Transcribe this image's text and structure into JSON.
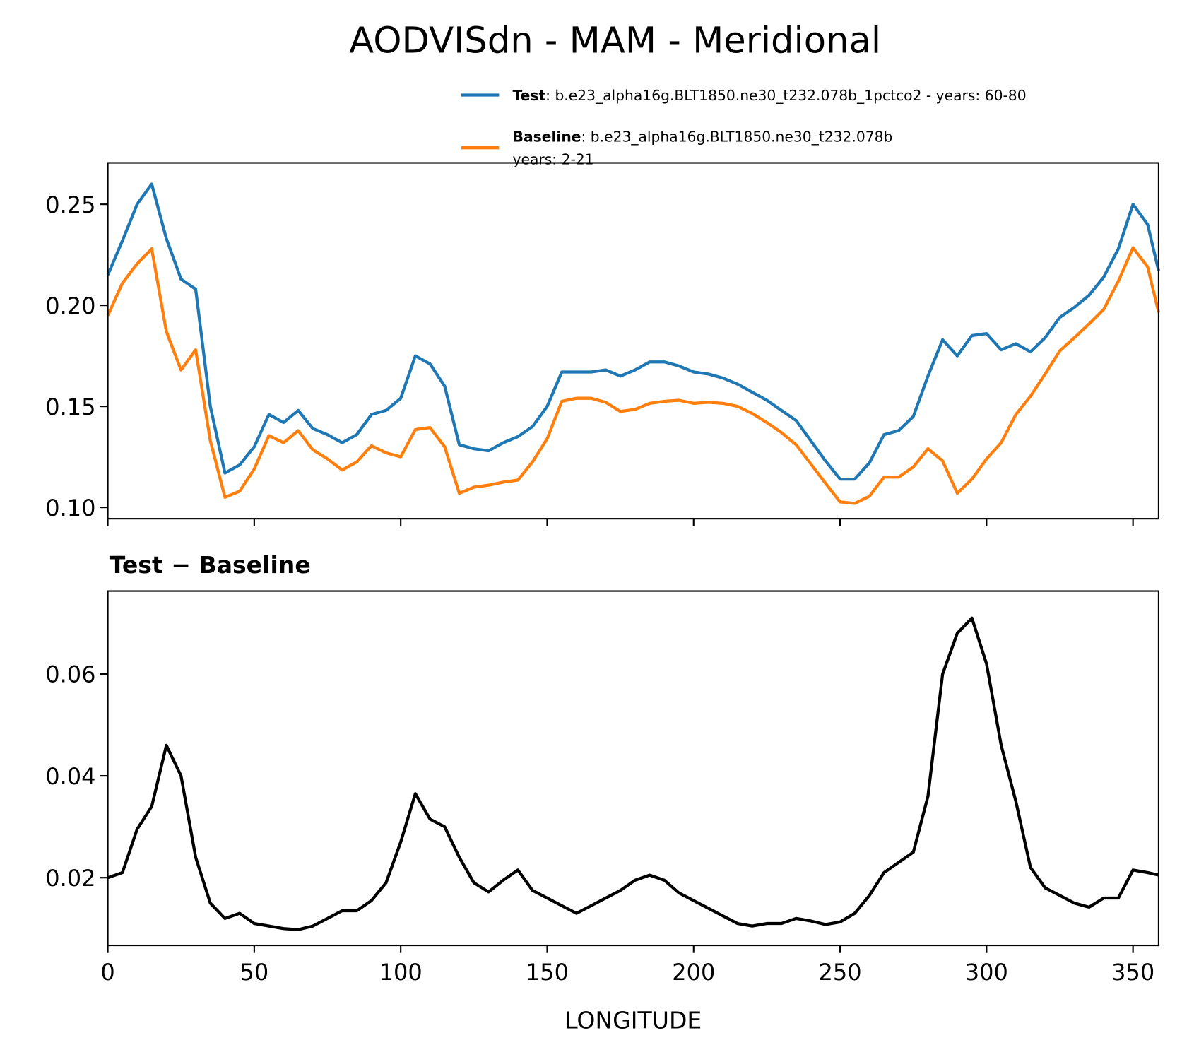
{
  "chart_data": [
    {
      "type": "line",
      "suptitle": "AODVISdn - MAM - Meridional",
      "x": [
        0,
        5,
        10,
        15,
        20,
        25,
        30,
        35,
        40,
        45,
        50,
        55,
        60,
        65,
        70,
        75,
        80,
        85,
        90,
        95,
        100,
        105,
        110,
        115,
        120,
        125,
        130,
        135,
        140,
        145,
        150,
        155,
        160,
        165,
        170,
        175,
        180,
        185,
        190,
        195,
        200,
        205,
        210,
        215,
        220,
        225,
        230,
        235,
        240,
        245,
        250,
        255,
        260,
        265,
        270,
        275,
        280,
        285,
        290,
        295,
        300,
        305,
        310,
        315,
        320,
        325,
        330,
        335,
        340,
        345,
        350,
        355,
        358.75
      ],
      "series": [
        {
          "name": "Test",
          "description_lines": [
            ": b.e23_alpha16g.BLT1850.ne30_t232.078b_1pctco2 - years: 60-80"
          ],
          "color": "#1f77b4",
          "values": [
            0.215,
            0.232,
            0.25,
            0.26,
            0.233,
            0.213,
            0.208,
            0.15,
            0.117,
            0.121,
            0.13,
            0.146,
            0.142,
            0.148,
            0.139,
            0.136,
            0.132,
            0.136,
            0.146,
            0.148,
            0.154,
            0.175,
            0.171,
            0.16,
            0.131,
            0.129,
            0.128,
            0.132,
            0.135,
            0.14,
            0.15,
            0.167,
            0.167,
            0.167,
            0.168,
            0.165,
            0.168,
            0.172,
            0.172,
            0.17,
            0.167,
            0.166,
            0.164,
            0.161,
            0.157,
            0.153,
            0.148,
            0.143,
            0.133,
            0.123,
            0.114,
            0.114,
            0.122,
            0.136,
            0.138,
            0.145,
            0.165,
            0.183,
            0.175,
            0.185,
            0.186,
            0.178,
            0.181,
            0.177,
            0.184,
            0.194,
            0.199,
            0.205,
            0.214,
            0.228,
            0.25,
            0.24,
            0.217
          ]
        },
        {
          "name": "Baseline",
          "description_lines": [
            ": b.e23_alpha16g.BLT1850.ne30_t232.078b",
            "years: 2-21"
          ],
          "color": "#ff7f0e",
          "values": [
            0.195,
            0.211,
            0.2205,
            0.228,
            0.187,
            0.168,
            0.178,
            0.133,
            0.105,
            0.108,
            0.119,
            0.1355,
            0.132,
            0.138,
            0.1285,
            0.124,
            0.1185,
            0.1225,
            0.1305,
            0.127,
            0.125,
            0.1385,
            0.1395,
            0.13,
            0.107,
            0.11,
            0.111,
            0.1125,
            0.1135,
            0.1225,
            0.134,
            0.1525,
            0.154,
            0.154,
            0.152,
            0.1475,
            0.1485,
            0.1515,
            0.1525,
            0.153,
            0.1515,
            0.152,
            0.1515,
            0.15,
            0.1465,
            0.142,
            0.137,
            0.131,
            0.1215,
            0.112,
            0.1027,
            0.102,
            0.1055,
            0.115,
            0.115,
            0.12,
            0.129,
            0.123,
            0.107,
            0.114,
            0.124,
            0.132,
            0.146,
            0.155,
            0.166,
            0.1775,
            0.184,
            0.1908,
            0.198,
            0.212,
            0.2285,
            0.219,
            0.1965
          ]
        }
      ],
      "xlim": [
        0,
        358.75
      ],
      "xticks": [
        0,
        50,
        100,
        150,
        200,
        250,
        300,
        350
      ],
      "xticklabels": false,
      "ylim": [
        0.0944,
        0.2705
      ],
      "yticks": [
        {
          "value": 0.1,
          "label": "0.10"
        },
        0.15,
        {
          "value": 0.2,
          "label": "0.20"
        },
        0.25
      ],
      "legend": "upper right"
    },
    {
      "type": "line",
      "title": "Test − Baseline",
      "xlabel": "LONGITUDE",
      "x": [
        0,
        5,
        10,
        15,
        20,
        25,
        30,
        35,
        40,
        45,
        50,
        55,
        60,
        65,
        70,
        75,
        80,
        85,
        90,
        95,
        100,
        105,
        110,
        115,
        120,
        125,
        130,
        135,
        140,
        145,
        150,
        155,
        160,
        165,
        170,
        175,
        180,
        185,
        190,
        195,
        200,
        205,
        210,
        215,
        220,
        225,
        230,
        235,
        240,
        245,
        250,
        255,
        260,
        265,
        270,
        275,
        280,
        285,
        290,
        295,
        300,
        305,
        310,
        315,
        320,
        325,
        330,
        335,
        340,
        345,
        350,
        355,
        358.75
      ],
      "series": [
        {
          "color": "#000000",
          "values": [
            0.02,
            0.021,
            0.0295,
            0.034,
            0.046,
            0.04,
            0.024,
            0.015,
            0.012,
            0.013,
            0.011,
            0.0105,
            0.01,
            0.0098,
            0.0105,
            0.012,
            0.0135,
            0.0135,
            0.0155,
            0.019,
            0.027,
            0.0365,
            0.0315,
            0.03,
            0.024,
            0.019,
            0.0172,
            0.0195,
            0.0215,
            0.0175,
            0.016,
            0.0145,
            0.013,
            0.0145,
            0.016,
            0.0175,
            0.0195,
            0.0205,
            0.0195,
            0.017,
            0.0155,
            0.014,
            0.0125,
            0.011,
            0.0105,
            0.011,
            0.011,
            0.012,
            0.0115,
            0.0108,
            0.0113,
            0.013,
            0.0165,
            0.021,
            0.023,
            0.025,
            0.036,
            0.06,
            0.068,
            0.071,
            0.062,
            0.046,
            0.035,
            0.022,
            0.018,
            0.0165,
            0.015,
            0.0142,
            0.016,
            0.016,
            0.0215,
            0.021,
            0.0205
          ]
        }
      ],
      "xlim": [
        0,
        358.75
      ],
      "xticks": [
        0,
        50,
        100,
        150,
        200,
        250,
        300,
        350
      ],
      "xticklabels": true,
      "ylim": [
        0.0067,
        0.0763
      ],
      "yticks": [
        0.02,
        0.04,
        0.06
      ]
    }
  ]
}
